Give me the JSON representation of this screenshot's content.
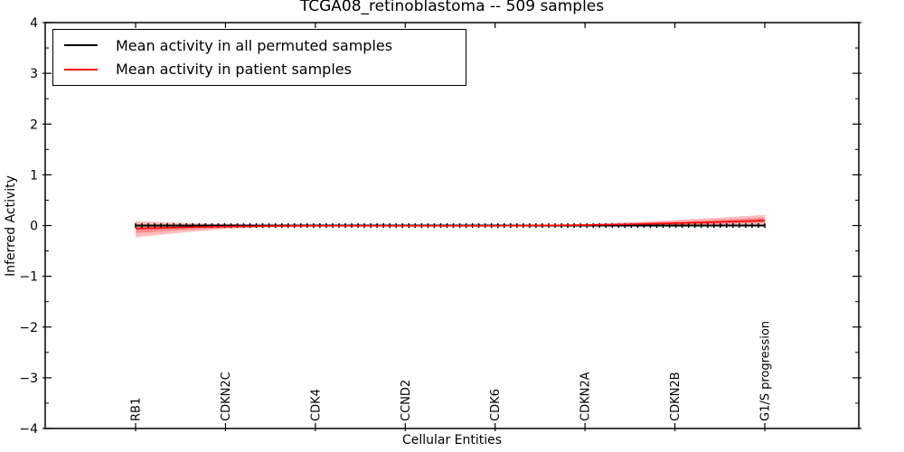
{
  "figure": {
    "background": "#ffffff"
  },
  "chart_data": {
    "type": "line",
    "title": "TCGA08_retinoblastoma -- 509 samples",
    "xlabel": "Cellular Entities",
    "ylabel": "Inferred Activity",
    "ylim": [
      -4,
      4
    ],
    "ytick_values": [
      4,
      3,
      2,
      1,
      0,
      -1,
      -2,
      -3,
      -4
    ],
    "ytick_labels": [
      "4",
      "3",
      "2",
      "1",
      "0",
      "−1",
      "−2",
      "−3",
      "−4"
    ],
    "y_minor_step": 0.5,
    "grid": false,
    "categories": [
      "RB1",
      "CDKN2C",
      "CDK4",
      "CCND2",
      "CDK6",
      "CDKN2A",
      "CDKN2B",
      "G1/S progression"
    ],
    "legend": {
      "position": "upper left",
      "entries": [
        {
          "label": "Mean activity in all permuted samples",
          "color": "#000000"
        },
        {
          "label": "Mean activity in patient samples",
          "color": "#ff0000"
        }
      ]
    },
    "series": [
      {
        "name": "Mean activity in all permuted samples",
        "color": "#000000",
        "linewidth": 2,
        "marker": "|",
        "marker_count": 100,
        "values": [
          0,
          0,
          0,
          0,
          0,
          0,
          0,
          0
        ]
      },
      {
        "name": "Mean activity in patient samples",
        "color": "#ff0000",
        "linewidth": 1.6,
        "marker": null,
        "values": [
          -0.06,
          -0.02,
          -0.005,
          -0.005,
          -0.005,
          0.01,
          0.045,
          0.1
        ]
      }
    ],
    "uncertainty_band": {
      "series": "Mean activity in patient samples",
      "color": "#ff0000",
      "alpha": 0.26,
      "upper": [
        0.09,
        0.03,
        0.005,
        0.005,
        0.005,
        0.03,
        0.11,
        0.21
      ],
      "lower": [
        -0.23,
        -0.07,
        -0.015,
        -0.015,
        -0.015,
        -0.01,
        -0.02,
        0.005
      ]
    }
  }
}
